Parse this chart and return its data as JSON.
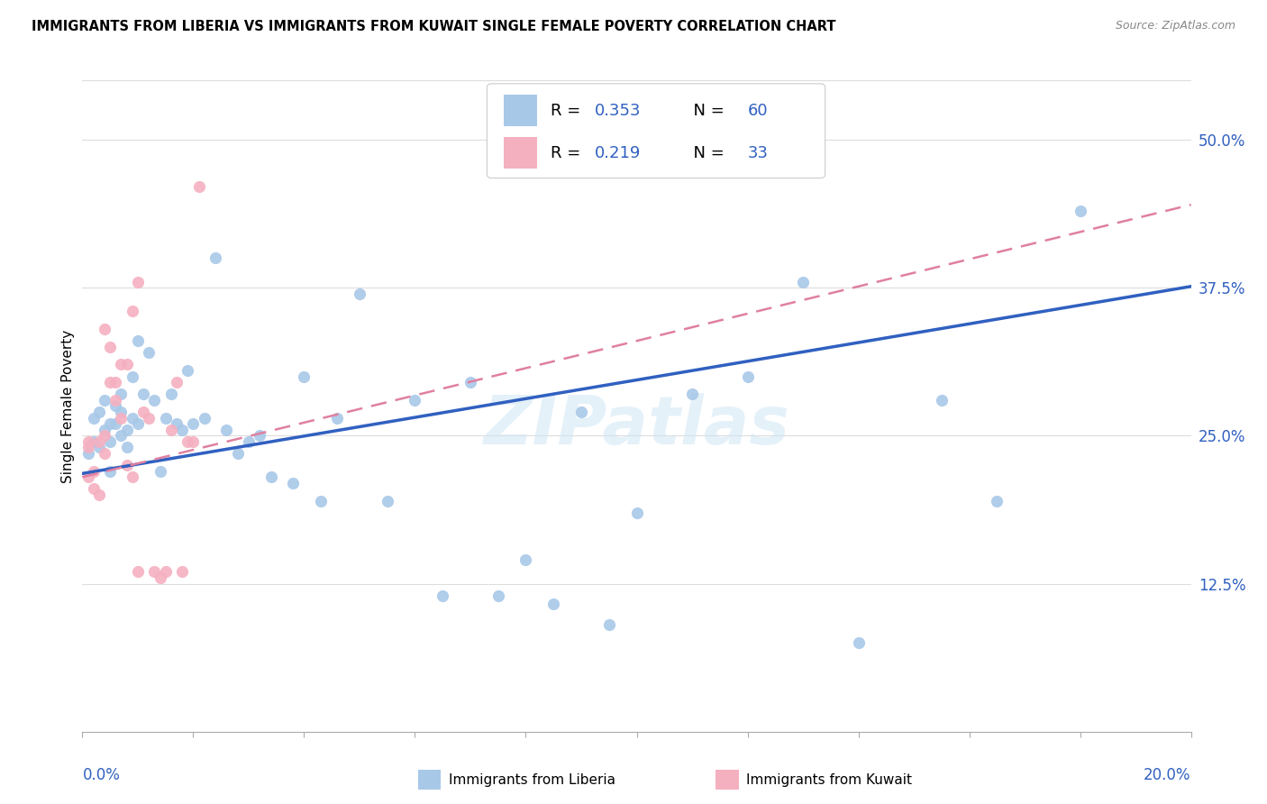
{
  "title": "IMMIGRANTS FROM LIBERIA VS IMMIGRANTS FROM KUWAIT SINGLE FEMALE POVERTY CORRELATION CHART",
  "source": "Source: ZipAtlas.com",
  "ylabel": "Single Female Poverty",
  "R1": "0.353",
  "N1": "60",
  "R2": "0.219",
  "N2": "33",
  "color_liberia_scatter": "#a8c8e8",
  "color_kuwait_scatter": "#f5b0c0",
  "color_liberia_line": "#3060c0",
  "color_kuwait_line": "#e080a0",
  "xlim": [
    0.0,
    0.2
  ],
  "ylim": [
    0.0,
    0.55
  ],
  "yticks": [
    0.125,
    0.25,
    0.375,
    0.5
  ],
  "ytick_labels": [
    "12.5%",
    "25.0%",
    "37.5%",
    "50.0%"
  ],
  "watermark": "ZIPatlas",
  "legend_label1": "Immigrants from Liberia",
  "legend_label2": "Immigrants from Kuwait",
  "line1_x0": 0.0,
  "line1_y0": 0.218,
  "line1_x1": 0.2,
  "line1_y1": 0.376,
  "line2_x0": 0.0,
  "line2_y0": 0.215,
  "line2_x1": 0.2,
  "line2_y1": 0.445,
  "liberia_x": [
    0.001,
    0.002,
    0.002,
    0.003,
    0.003,
    0.004,
    0.004,
    0.005,
    0.005,
    0.005,
    0.006,
    0.006,
    0.007,
    0.007,
    0.007,
    0.008,
    0.008,
    0.009,
    0.009,
    0.01,
    0.01,
    0.011,
    0.012,
    0.013,
    0.014,
    0.015,
    0.016,
    0.017,
    0.018,
    0.019,
    0.02,
    0.022,
    0.024,
    0.026,
    0.028,
    0.03,
    0.032,
    0.034,
    0.038,
    0.04,
    0.043,
    0.046,
    0.05,
    0.055,
    0.06,
    0.065,
    0.07,
    0.075,
    0.08,
    0.085,
    0.09,
    0.095,
    0.1,
    0.11,
    0.12,
    0.13,
    0.14,
    0.155,
    0.165,
    0.18
  ],
  "liberia_y": [
    0.235,
    0.245,
    0.265,
    0.24,
    0.27,
    0.255,
    0.28,
    0.22,
    0.245,
    0.26,
    0.275,
    0.26,
    0.25,
    0.285,
    0.27,
    0.255,
    0.24,
    0.3,
    0.265,
    0.26,
    0.33,
    0.285,
    0.32,
    0.28,
    0.22,
    0.265,
    0.285,
    0.26,
    0.255,
    0.305,
    0.26,
    0.265,
    0.4,
    0.255,
    0.235,
    0.245,
    0.25,
    0.215,
    0.21,
    0.3,
    0.195,
    0.265,
    0.37,
    0.195,
    0.28,
    0.115,
    0.295,
    0.115,
    0.145,
    0.108,
    0.27,
    0.09,
    0.185,
    0.285,
    0.3,
    0.38,
    0.075,
    0.28,
    0.195,
    0.44
  ],
  "kuwait_x": [
    0.001,
    0.001,
    0.001,
    0.002,
    0.002,
    0.003,
    0.003,
    0.004,
    0.004,
    0.004,
    0.005,
    0.005,
    0.006,
    0.006,
    0.007,
    0.007,
    0.008,
    0.008,
    0.009,
    0.009,
    0.01,
    0.01,
    0.011,
    0.012,
    0.013,
    0.014,
    0.015,
    0.016,
    0.017,
    0.018,
    0.019,
    0.02,
    0.021
  ],
  "kuwait_y": [
    0.245,
    0.24,
    0.215,
    0.22,
    0.205,
    0.2,
    0.245,
    0.235,
    0.34,
    0.25,
    0.295,
    0.325,
    0.295,
    0.28,
    0.31,
    0.265,
    0.31,
    0.225,
    0.215,
    0.355,
    0.38,
    0.135,
    0.27,
    0.265,
    0.135,
    0.13,
    0.135,
    0.255,
    0.295,
    0.135,
    0.245,
    0.245,
    0.46
  ]
}
